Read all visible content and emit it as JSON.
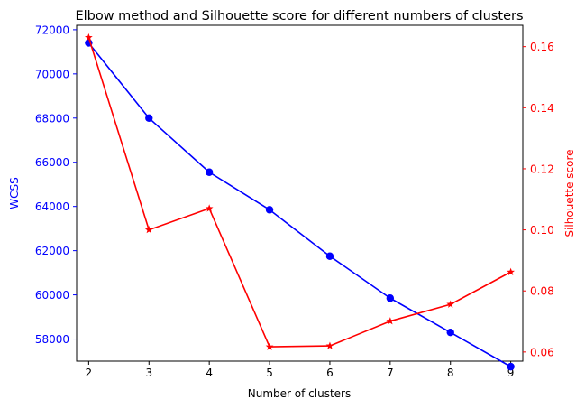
{
  "chart_data": {
    "type": "line",
    "title": "Elbow method and Silhouette score for different numbers of clusters",
    "xlabel": "Number of clusters",
    "x": [
      2,
      3,
      4,
      5,
      6,
      7,
      8,
      9
    ],
    "xlim": [
      1.8,
      9.2
    ],
    "xticks": [
      "2",
      "3",
      "4",
      "5",
      "6",
      "7",
      "8",
      "9"
    ],
    "y_left": {
      "label": "WCSS",
      "color": "#0000ff",
      "ylim": [
        57000,
        72200
      ],
      "ticks": [
        "58000",
        "60000",
        "62000",
        "64000",
        "66000",
        "68000",
        "70000",
        "72000"
      ]
    },
    "y_right": {
      "label": "Silhouette score",
      "color": "#ff0000",
      "ylim": [
        0.057,
        0.167
      ],
      "ticks": [
        "0.06",
        "0.08",
        "0.10",
        "0.12",
        "0.14",
        "0.16"
      ]
    },
    "series": [
      {
        "axis": "left",
        "marker": "circle",
        "color": "#0000ff",
        "values": [
          71400,
          68000,
          65550,
          63850,
          61750,
          59850,
          58300,
          56750
        ]
      },
      {
        "axis": "right",
        "marker": "star",
        "color": "#ff0000",
        "values": [
          0.163,
          0.1,
          0.107,
          0.0617,
          0.062,
          0.0701,
          0.0756,
          0.0862
        ]
      }
    ],
    "grid": false
  }
}
